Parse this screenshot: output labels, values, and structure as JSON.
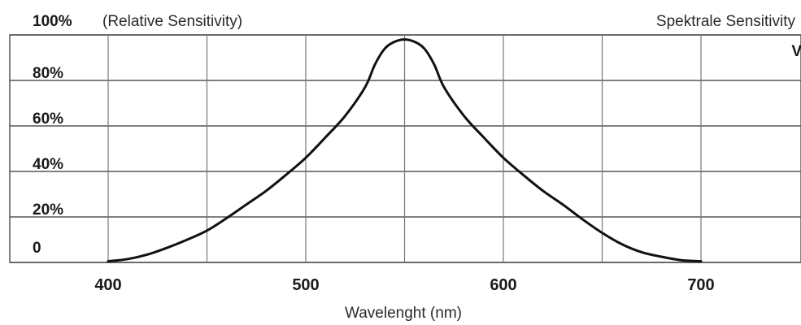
{
  "chart_data": {
    "type": "line",
    "title_left_bold": "100%",
    "title_left": "(Relative Sensitivity)",
    "title_right": "Spektrale Sensitivity",
    "xlabel": "Wavelenght (nm)",
    "ylabel": "",
    "xlim": [
      400,
      750
    ],
    "ylim": [
      0,
      100
    ],
    "grid": true,
    "x_gridlines": [
      400,
      450,
      500,
      550,
      600,
      650,
      700
    ],
    "y_gridlines": [
      0,
      20,
      40,
      60,
      80,
      100
    ],
    "x_ticks": [
      {
        "value": 400,
        "label": "400"
      },
      {
        "value": 500,
        "label": "500"
      },
      {
        "value": 600,
        "label": "600"
      },
      {
        "value": 700,
        "label": "700"
      }
    ],
    "y_ticks": [
      {
        "value": 0,
        "label": "0"
      },
      {
        "value": 20,
        "label": "20%"
      },
      {
        "value": 40,
        "label": "40%"
      },
      {
        "value": 60,
        "label": "60%"
      },
      {
        "value": 80,
        "label": "80%"
      }
    ],
    "annotations": [
      {
        "text": "V ( λ )",
        "x": 740,
        "y": 90
      }
    ],
    "series": [
      {
        "x": [
          400,
          410,
          420,
          430,
          440,
          450,
          460,
          470,
          480,
          490,
          500,
          510,
          520,
          530,
          535,
          540,
          545,
          550,
          555,
          560,
          565,
          570,
          580,
          590,
          600,
          610,
          620,
          630,
          640,
          650,
          660,
          670,
          680,
          690,
          700
        ],
        "values": [
          0.5,
          1.5,
          3.5,
          6.5,
          10,
          14,
          19.5,
          25.5,
          31.5,
          38.5,
          46,
          55,
          64.5,
          77,
          87,
          94,
          97,
          98,
          97,
          94,
          87,
          77,
          64.5,
          55,
          46,
          38.5,
          31.5,
          25.5,
          19,
          13,
          8,
          4.5,
          2.5,
          1,
          0.5
        ]
      }
    ]
  }
}
